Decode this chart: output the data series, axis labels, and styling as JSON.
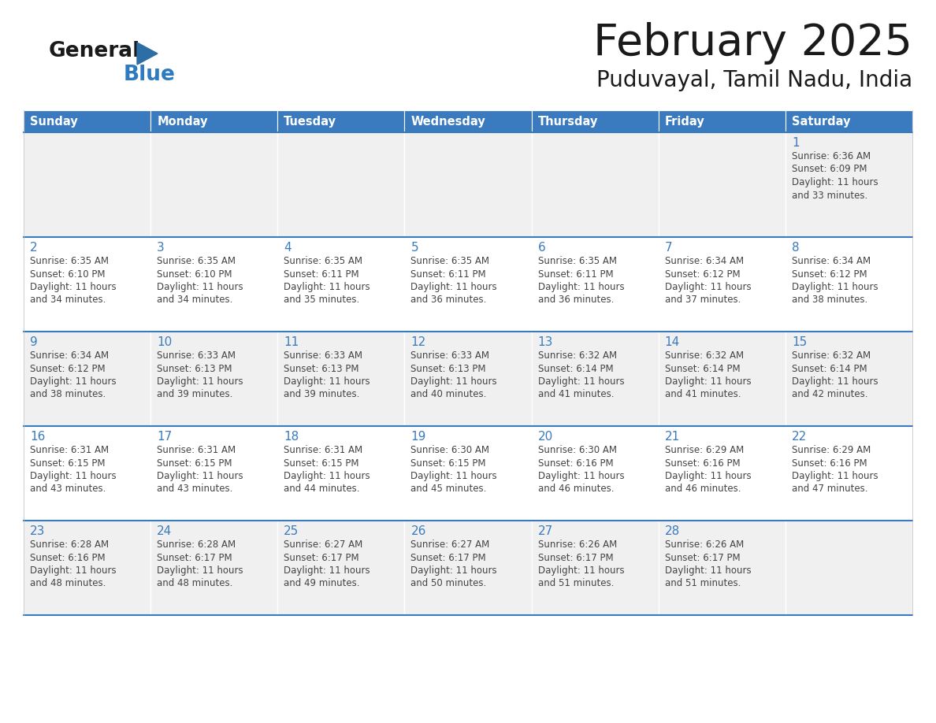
{
  "title": "February 2025",
  "subtitle": "Puduvayal, Tamil Nadu, India",
  "header_color": "#3a7bbf",
  "header_text_color": "#ffffff",
  "cell_bg_even": "#f0f0f0",
  "cell_bg_odd": "#ffffff",
  "separator_color": "#3a7bbf",
  "day_num_color": "#3a7bbf",
  "info_color": "#444444",
  "day_headers": [
    "Sunday",
    "Monday",
    "Tuesday",
    "Wednesday",
    "Thursday",
    "Friday",
    "Saturday"
  ],
  "calendar_data": [
    [
      null,
      null,
      null,
      null,
      null,
      null,
      {
        "day": 1,
        "sunrise": "6:36 AM",
        "sunset": "6:09 PM",
        "daylight": "11 hours and 33 minutes."
      }
    ],
    [
      {
        "day": 2,
        "sunrise": "6:35 AM",
        "sunset": "6:10 PM",
        "daylight": "11 hours and 34 minutes."
      },
      {
        "day": 3,
        "sunrise": "6:35 AM",
        "sunset": "6:10 PM",
        "daylight": "11 hours and 34 minutes."
      },
      {
        "day": 4,
        "sunrise": "6:35 AM",
        "sunset": "6:11 PM",
        "daylight": "11 hours and 35 minutes."
      },
      {
        "day": 5,
        "sunrise": "6:35 AM",
        "sunset": "6:11 PM",
        "daylight": "11 hours and 36 minutes."
      },
      {
        "day": 6,
        "sunrise": "6:35 AM",
        "sunset": "6:11 PM",
        "daylight": "11 hours and 36 minutes."
      },
      {
        "day": 7,
        "sunrise": "6:34 AM",
        "sunset": "6:12 PM",
        "daylight": "11 hours and 37 minutes."
      },
      {
        "day": 8,
        "sunrise": "6:34 AM",
        "sunset": "6:12 PM",
        "daylight": "11 hours and 38 minutes."
      }
    ],
    [
      {
        "day": 9,
        "sunrise": "6:34 AM",
        "sunset": "6:12 PM",
        "daylight": "11 hours and 38 minutes."
      },
      {
        "day": 10,
        "sunrise": "6:33 AM",
        "sunset": "6:13 PM",
        "daylight": "11 hours and 39 minutes."
      },
      {
        "day": 11,
        "sunrise": "6:33 AM",
        "sunset": "6:13 PM",
        "daylight": "11 hours and 39 minutes."
      },
      {
        "day": 12,
        "sunrise": "6:33 AM",
        "sunset": "6:13 PM",
        "daylight": "11 hours and 40 minutes."
      },
      {
        "day": 13,
        "sunrise": "6:32 AM",
        "sunset": "6:14 PM",
        "daylight": "11 hours and 41 minutes."
      },
      {
        "day": 14,
        "sunrise": "6:32 AM",
        "sunset": "6:14 PM",
        "daylight": "11 hours and 41 minutes."
      },
      {
        "day": 15,
        "sunrise": "6:32 AM",
        "sunset": "6:14 PM",
        "daylight": "11 hours and 42 minutes."
      }
    ],
    [
      {
        "day": 16,
        "sunrise": "6:31 AM",
        "sunset": "6:15 PM",
        "daylight": "11 hours and 43 minutes."
      },
      {
        "day": 17,
        "sunrise": "6:31 AM",
        "sunset": "6:15 PM",
        "daylight": "11 hours and 43 minutes."
      },
      {
        "day": 18,
        "sunrise": "6:31 AM",
        "sunset": "6:15 PM",
        "daylight": "11 hours and 44 minutes."
      },
      {
        "day": 19,
        "sunrise": "6:30 AM",
        "sunset": "6:15 PM",
        "daylight": "11 hours and 45 minutes."
      },
      {
        "day": 20,
        "sunrise": "6:30 AM",
        "sunset": "6:16 PM",
        "daylight": "11 hours and 46 minutes."
      },
      {
        "day": 21,
        "sunrise": "6:29 AM",
        "sunset": "6:16 PM",
        "daylight": "11 hours and 46 minutes."
      },
      {
        "day": 22,
        "sunrise": "6:29 AM",
        "sunset": "6:16 PM",
        "daylight": "11 hours and 47 minutes."
      }
    ],
    [
      {
        "day": 23,
        "sunrise": "6:28 AM",
        "sunset": "6:16 PM",
        "daylight": "11 hours and 48 minutes."
      },
      {
        "day": 24,
        "sunrise": "6:28 AM",
        "sunset": "6:17 PM",
        "daylight": "11 hours and 48 minutes."
      },
      {
        "day": 25,
        "sunrise": "6:27 AM",
        "sunset": "6:17 PM",
        "daylight": "11 hours and 49 minutes."
      },
      {
        "day": 26,
        "sunrise": "6:27 AM",
        "sunset": "6:17 PM",
        "daylight": "11 hours and 50 minutes."
      },
      {
        "day": 27,
        "sunrise": "6:26 AM",
        "sunset": "6:17 PM",
        "daylight": "11 hours and 51 minutes."
      },
      {
        "day": 28,
        "sunrise": "6:26 AM",
        "sunset": "6:17 PM",
        "daylight": "11 hours and 51 minutes."
      },
      null
    ]
  ]
}
